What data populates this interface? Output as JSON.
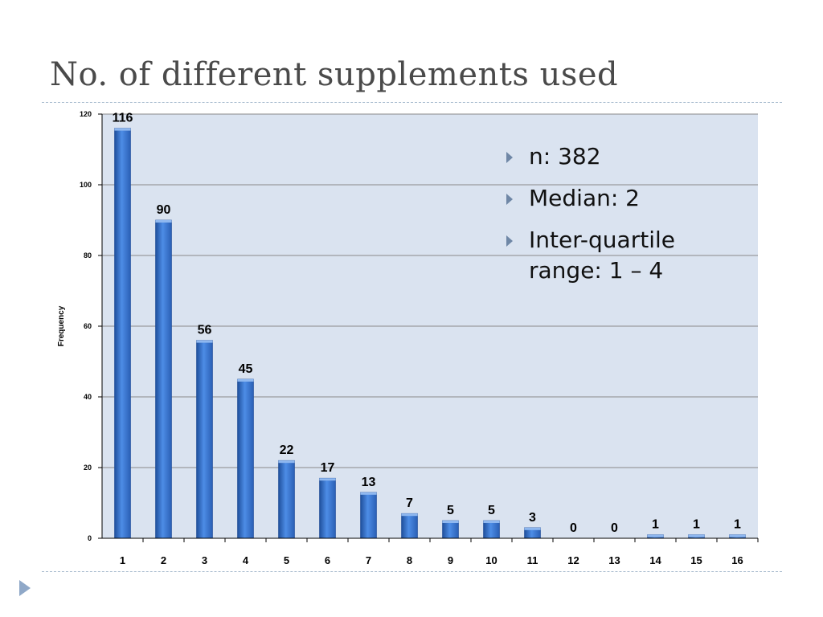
{
  "slide": {
    "title": "No. of different supplements used"
  },
  "bullets": [
    {
      "text": "n: 382"
    },
    {
      "text": "Median: 2"
    },
    {
      "text": "Inter-quartile range: 1 – 4"
    }
  ],
  "colors": {
    "plot_background": "#dae3f0",
    "bar": "#3d7ad6",
    "bar_dark": "#1f4f9c",
    "gridline": "#8a8a8a",
    "title_text": "#4a4a4a",
    "divider": "#a9bccf"
  },
  "chart_data": {
    "type": "bar",
    "categories": [
      "1",
      "2",
      "3",
      "4",
      "5",
      "6",
      "7",
      "8",
      "9",
      "10",
      "11",
      "12",
      "13",
      "14",
      "15",
      "16"
    ],
    "values": [
      116,
      90,
      56,
      45,
      22,
      17,
      13,
      7,
      5,
      5,
      3,
      0,
      0,
      1,
      1,
      1
    ],
    "data_labels": [
      "116",
      "90",
      "56",
      "45",
      "22",
      "17",
      "13",
      "7",
      "5",
      "5",
      "3",
      "0",
      "0",
      "1",
      "1",
      "1"
    ],
    "ylabel": "Frequency",
    "xlabel": "",
    "ylim": [
      0,
      120
    ],
    "yticks": [
      0,
      20,
      40,
      60,
      80,
      100,
      120
    ],
    "ytick_labels": [
      "0",
      "20",
      "40",
      "60",
      "80",
      "100",
      "120"
    ],
    "grid": true,
    "legend": "none"
  }
}
